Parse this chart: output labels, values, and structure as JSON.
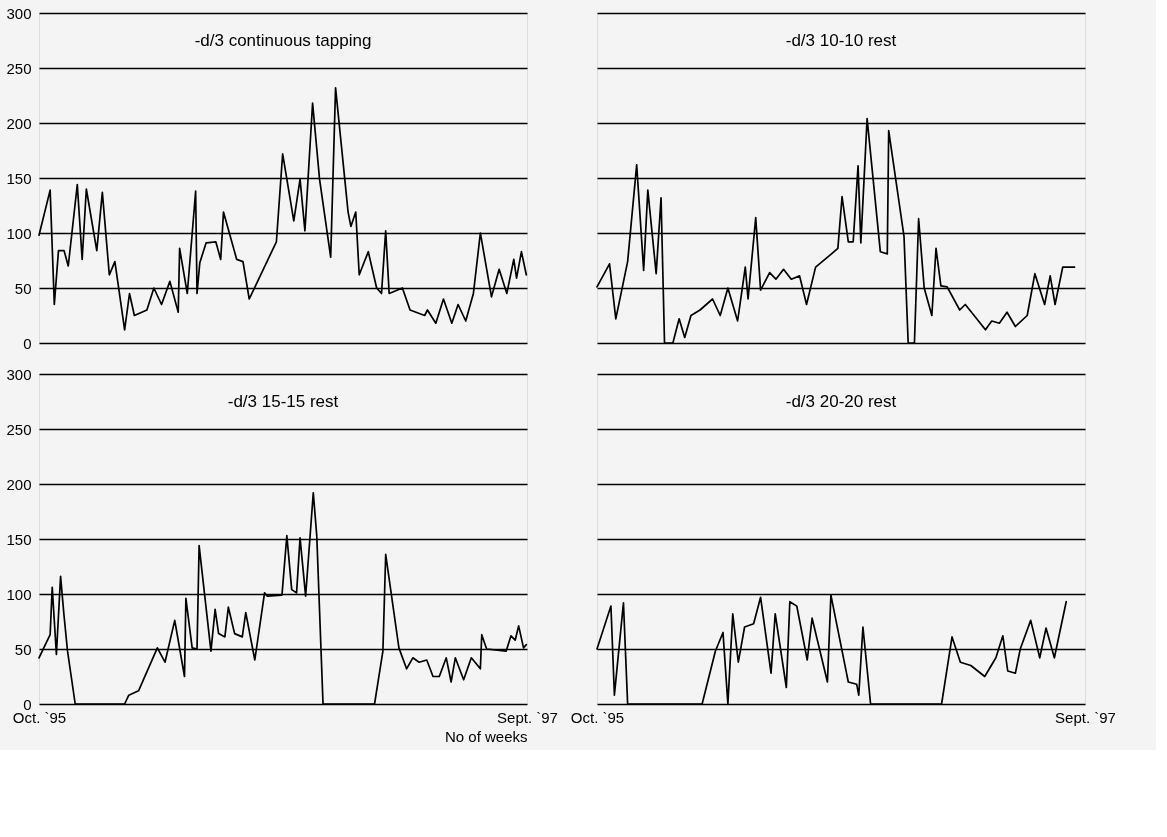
{
  "chart_data": [
    {
      "type": "line",
      "title": "-d/3 continuous tapping",
      "xlim": [
        "1995-10-01",
        "1997-09-01"
      ],
      "ylim": [
        0,
        300
      ],
      "yticks": [
        0,
        50,
        100,
        150,
        200,
        250,
        300
      ],
      "grid": "y",
      "tick_labels": "y",
      "x": [
        "1995-10-01",
        "1995-10-17",
        "1995-10-23",
        "1995-10-29",
        "1995-11-06",
        "1995-11-12",
        "1995-11-25",
        "1995-12-02",
        "1995-12-08",
        "1995-12-23",
        "1995-12-31",
        "1996-01-10",
        "1996-01-18",
        "1996-01-23",
        "1996-02-01",
        "1996-02-08",
        "1996-02-15",
        "1996-03-04",
        "1996-03-14",
        "1996-03-25",
        "1996-04-06",
        "1996-04-18",
        "1996-04-20",
        "1996-05-01",
        "1996-05-13",
        "1996-05-15",
        "1996-05-19",
        "1996-05-28",
        "1996-06-11",
        "1996-06-18",
        "1996-06-22",
        "1996-07-11",
        "1996-07-20",
        "1996-07-29",
        "1996-09-06",
        "1996-09-15",
        "1996-10-01",
        "1996-10-10",
        "1996-10-17",
        "1996-10-28",
        "1996-11-07",
        "1996-11-23",
        "1996-11-30",
        "1996-12-18",
        "1996-12-22",
        "1996-12-29",
        "1997-01-03",
        "1997-01-16",
        "1997-01-28",
        "1997-02-04",
        "1997-02-10",
        "1997-02-15",
        "1997-03-06",
        "1997-03-17",
        "1997-04-07",
        "1997-04-11",
        "1997-04-23",
        "1997-05-04",
        "1997-05-16",
        "1997-05-25",
        "1997-06-05",
        "1997-06-16",
        "1997-06-26",
        "1997-07-12",
        "1997-07-23",
        "1997-08-03",
        "1997-08-13",
        "1997-08-17",
        "1997-08-24",
        "1997-08-31"
      ],
      "series": [
        {
          "color": "#000000",
          "values": [
            98,
            139,
            35,
            84,
            84,
            70,
            144,
            76,
            140,
            84,
            137,
            62,
            74,
            52,
            12,
            45,
            25,
            30,
            50,
            35,
            56,
            28,
            86,
            45,
            138,
            45,
            73,
            91,
            92,
            76,
            119,
            76,
            74,
            40,
            92,
            172,
            111,
            149,
            102,
            218,
            149,
            78,
            232,
            119,
            106,
            119,
            62,
            83,
            50,
            45,
            102,
            45,
            50,
            30,
            25,
            30,
            18,
            40,
            18,
            35,
            20,
            45,
            100,
            42,
            67,
            45,
            76,
            59,
            83,
            62
          ]
        }
      ]
    },
    {
      "type": "line",
      "title": "-d/3 10-10 rest",
      "xlim": [
        "1995-10-01",
        "1997-09-01"
      ],
      "ylim": [
        0,
        300
      ],
      "yticks": [
        0,
        50,
        100,
        150,
        200,
        250,
        300
      ],
      "grid": "y",
      "tick_labels": false,
      "x": [
        "1995-10-01",
        "1995-10-19",
        "1995-10-28",
        "1995-11-14",
        "1995-11-27",
        "1995-12-07",
        "1995-12-13",
        "1995-12-25",
        "1996-01-01",
        "1996-01-06",
        "1996-01-18",
        "1996-01-27",
        "1996-02-04",
        "1996-02-13",
        "1996-02-26",
        "1996-03-15",
        "1996-03-26",
        "1996-04-06",
        "1996-04-20",
        "1996-05-01",
        "1996-05-05",
        "1996-05-16",
        "1996-05-23",
        "1996-06-05",
        "1996-06-14",
        "1996-06-25",
        "1996-07-06",
        "1996-07-18",
        "1996-07-28",
        "1996-08-10",
        "1996-08-29",
        "1996-09-11",
        "1996-09-17",
        "1996-09-26",
        "1996-10-03",
        "1996-10-10",
        "1996-10-14",
        "1996-10-23",
        "1996-11-11",
        "1996-11-21",
        "1996-11-23",
        "1996-12-15",
        "1996-12-21",
        "1996-12-30",
        "1997-01-05",
        "1997-01-13",
        "1997-01-24",
        "1997-01-30",
        "1997-02-06",
        "1997-02-15",
        "1997-03-05",
        "1997-03-13",
        "1997-03-22",
        "1997-04-11",
        "1997-04-20",
        "1997-05-01",
        "1997-05-12",
        "1997-05-24",
        "1997-06-10",
        "1997-06-21",
        "1997-07-05",
        "1997-07-13",
        "1997-07-20",
        "1997-07-31",
        "1997-08-17"
      ],
      "series": [
        {
          "color": "#000000",
          "values": [
            51,
            72,
            22,
            74,
            162,
            66,
            139,
            63,
            132,
            0,
            0,
            22,
            5,
            25,
            30,
            40,
            25,
            50,
            20,
            69,
            40,
            114,
            48,
            64,
            58,
            67,
            58,
            61,
            35,
            69,
            79,
            86,
            133,
            92,
            92,
            161,
            91,
            204,
            83,
            81,
            193,
            97,
            0,
            0,
            113,
            50,
            25,
            86,
            52,
            51,
            30,
            35,
            28,
            12,
            20,
            18,
            28,
            15,
            25,
            63,
            35,
            61,
            35,
            69,
            69
          ]
        }
      ]
    },
    {
      "type": "line",
      "title": "-d/3 15-15 rest",
      "xlabel": "No of weeks",
      "xlim": [
        "1995-10-01",
        "1997-09-01"
      ],
      "xticks": [
        {
          "value": "1995-10",
          "label": "Oct. `95"
        },
        {
          "value": "1997-09",
          "label": "Sept. `97"
        }
      ],
      "ylim": [
        0,
        300
      ],
      "yticks": [
        0,
        50,
        100,
        150,
        200,
        250,
        300
      ],
      "grid": "y",
      "x": [
        "1995-10-01",
        "1995-10-17",
        "1995-10-20",
        "1995-10-26",
        "1995-11-01",
        "1995-11-06",
        "1995-11-11",
        "1995-11-22",
        "1996-02-01",
        "1996-02-07",
        "1996-02-21",
        "1996-03-19",
        "1996-03-30",
        "1996-04-13",
        "1996-04-27",
        "1996-04-29",
        "1996-05-08",
        "1996-05-15",
        "1996-05-18",
        "1996-06-04",
        "1996-06-10",
        "1996-06-15",
        "1996-06-24",
        "1996-06-29",
        "1996-07-08",
        "1996-07-19",
        "1996-07-24",
        "1996-08-06",
        "1996-08-20",
        "1996-08-24",
        "1996-09-14",
        "1996-09-21",
        "1996-09-28",
        "1996-10-05",
        "1996-10-10",
        "1996-10-18",
        "1996-10-29",
        "1996-11-03",
        "1996-11-12",
        "1997-01-25",
        "1997-02-06",
        "1997-02-10",
        "1997-03-01",
        "1997-03-12",
        "1997-03-21",
        "1997-03-30",
        "1997-04-10",
        "1997-04-19",
        "1997-04-28",
        "1997-05-08",
        "1997-05-15",
        "1997-05-21",
        "1997-06-02",
        "1997-06-13",
        "1997-06-26",
        "1997-06-28",
        "1997-07-05",
        "1997-08-02",
        "1997-08-09",
        "1997-08-15",
        "1997-08-20",
        "1997-08-27",
        "1997-08-31"
      ],
      "series": [
        {
          "color": "#000000",
          "values": [
            42,
            63,
            106,
            45,
            116,
            80,
            48,
            0,
            0,
            8,
            12,
            51,
            38,
            76,
            25,
            96,
            51,
            50,
            144,
            48,
            86,
            64,
            61,
            88,
            64,
            61,
            83,
            40,
            101,
            98,
            99,
            153,
            104,
            101,
            151,
            98,
            192,
            153,
            0,
            0,
            48,
            136,
            51,
            32,
            42,
            38,
            40,
            25,
            25,
            42,
            20,
            42,
            22,
            42,
            32,
            63,
            50,
            48,
            62,
            58,
            71,
            51,
            54
          ]
        }
      ]
    },
    {
      "type": "line",
      "title": "-d/3 20-20 rest",
      "xlim": [
        "1995-10-01",
        "1997-09-01"
      ],
      "xticks": [
        {
          "value": "1995-10",
          "label": "Oct. `95"
        },
        {
          "value": "1997-09",
          "label": "Sept. `97"
        }
      ],
      "ylim": [
        0,
        300
      ],
      "yticks": [
        0,
        50,
        100,
        150,
        200,
        250,
        300
      ],
      "grid": "y",
      "tick_labels": "x",
      "x": [
        "1995-10-01",
        "1995-10-21",
        "1995-10-26",
        "1995-11-08",
        "1995-11-14",
        "1996-02-29",
        "1996-03-19",
        "1996-03-30",
        "1996-04-06",
        "1996-04-13",
        "1996-04-21",
        "1996-04-30",
        "1996-05-13",
        "1996-05-23",
        "1996-06-07",
        "1996-06-13",
        "1996-06-29",
        "1996-07-04",
        "1996-07-14",
        "1996-07-29",
        "1996-08-05",
        "1996-08-27",
        "1996-09-01",
        "1996-09-26",
        "1996-10-08",
        "1996-10-11",
        "1996-10-17",
        "1996-10-28",
        "1997-02-07",
        "1997-02-22",
        "1997-03-06",
        "1997-03-21",
        "1997-04-10",
        "1997-04-26",
        "1997-05-06",
        "1997-05-13",
        "1997-05-24",
        "1997-05-31",
        "1997-06-15",
        "1997-06-28",
        "1997-07-07",
        "1997-07-19",
        "1997-08-05"
      ],
      "series": [
        {
          "color": "#000000",
          "values": [
            50,
            89,
            8,
            92,
            0,
            0,
            48,
            65,
            0,
            82,
            38,
            70,
            73,
            97,
            28,
            82,
            15,
            93,
            89,
            40,
            78,
            20,
            99,
            20,
            18,
            8,
            70,
            0,
            0,
            61,
            38,
            35,
            25,
            42,
            62,
            30,
            28,
            50,
            76,
            42,
            69,
            42,
            93
          ]
        }
      ]
    }
  ]
}
